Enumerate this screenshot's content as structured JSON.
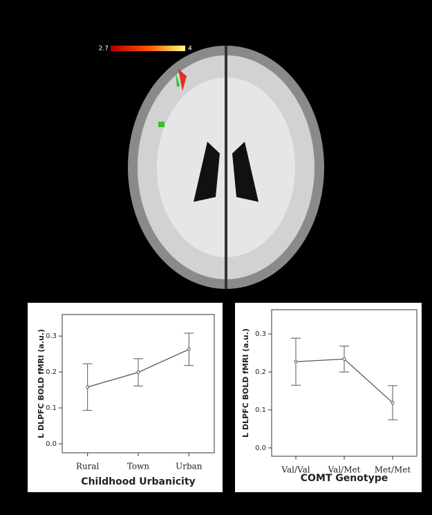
{
  "colorbar": {
    "ticks": [
      2.7,
      4
    ]
  },
  "chart_data": [
    {
      "type": "line",
      "categories": [
        "Rural",
        "Town",
        "Urban"
      ],
      "values": [
        0.158,
        0.199,
        0.263
      ],
      "errors": [
        0.065,
        0.038,
        0.045
      ],
      "color": "#555555",
      "ylim": [
        -0.025,
        0.36
      ],
      "yticks": [
        {
          "value": 0,
          "label": "0.0"
        },
        0.1,
        0.2,
        0.3
      ],
      "y_label": "L DLPFC BOLD fMRI (a.u.)",
      "x_label": "Childhood Urbanicity"
    },
    {
      "type": "line",
      "categories": [
        "Val/Val",
        "Val/Met",
        "Met/Met"
      ],
      "values": [
        0.227,
        0.234,
        0.119
      ],
      "errors": [
        0.062,
        0.034,
        0.045
      ],
      "color": "#555555",
      "ylim": [
        -0.022,
        0.364
      ],
      "yticks": [
        {
          "value": 0,
          "label": "0.0"
        },
        0.1,
        0.2,
        0.3
      ],
      "y_label": "L DLPFC BOLD fMRI (a.u.)",
      "x_label": "COMT Genotype"
    }
  ]
}
